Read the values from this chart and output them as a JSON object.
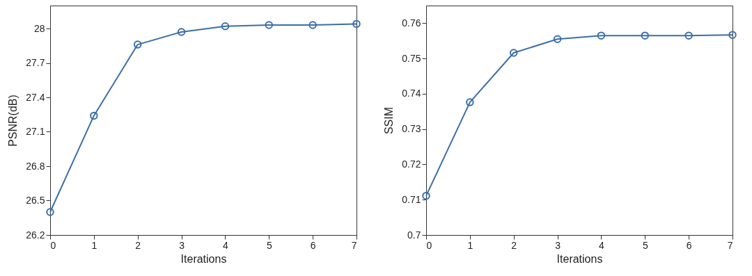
{
  "chart_data": [
    {
      "type": "line",
      "xlabel": "Iterations",
      "ylabel": "PSNR(dB)",
      "x": [
        0,
        1,
        2,
        3,
        4,
        5,
        6,
        7
      ],
      "xlim": [
        0,
        7
      ],
      "xticks": [
        0,
        1,
        2,
        3,
        4,
        5,
        6,
        7
      ],
      "ylim": [
        26.2,
        28.2
      ],
      "yticks": [
        26.2,
        26.5,
        26.8,
        27.1,
        27.4,
        27.7,
        28
      ],
      "grid": false,
      "marker": "circle",
      "line_style": "solid",
      "series": [
        {
          "color": "#3b6ea8",
          "values": [
            26.4,
            27.24,
            27.86,
            27.97,
            28.02,
            28.03,
            28.03,
            28.04
          ]
        }
      ]
    },
    {
      "type": "line",
      "xlabel": "Iterations",
      "ylabel": "SSIM",
      "x": [
        0,
        1,
        2,
        3,
        4,
        5,
        6,
        7
      ],
      "xlim": [
        0,
        7
      ],
      "xticks": [
        0,
        1,
        2,
        3,
        4,
        5,
        6,
        7
      ],
      "ylim": [
        0.7,
        0.765
      ],
      "yticks": [
        0.7,
        0.71,
        0.72,
        0.73,
        0.74,
        0.75,
        0.76
      ],
      "grid": false,
      "marker": "circle",
      "line_style": "solid",
      "series": [
        {
          "color": "#3b6ea8",
          "values": [
            0.7111,
            0.7376,
            0.7516,
            0.7555,
            0.7565,
            0.7565,
            0.7565,
            0.7567
          ]
        }
      ]
    }
  ]
}
